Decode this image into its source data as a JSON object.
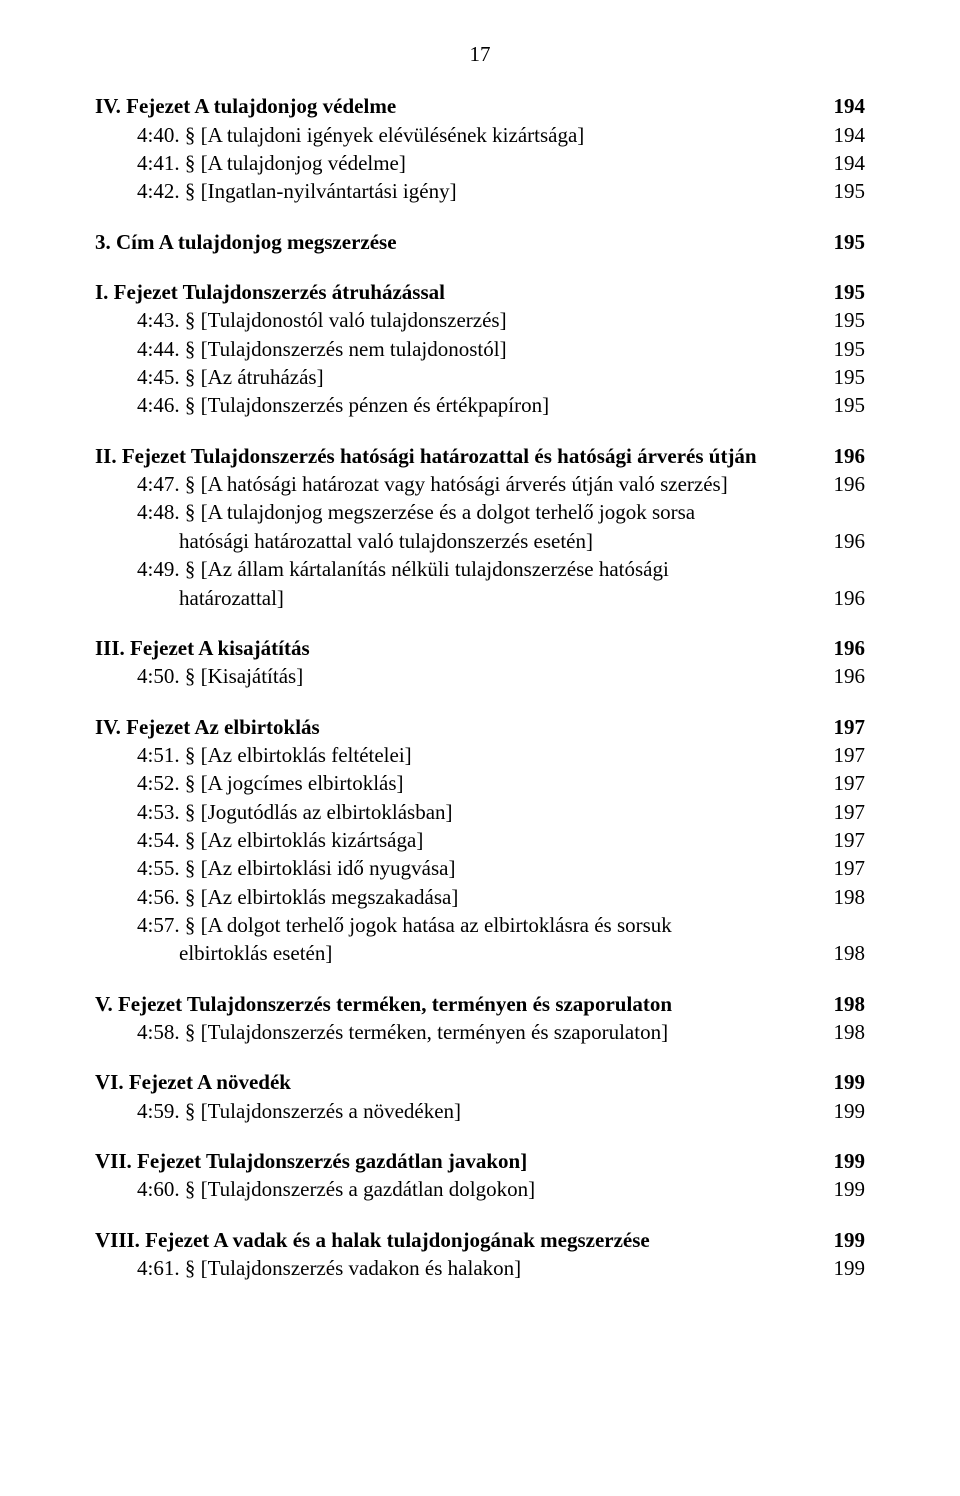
{
  "page_number": "17",
  "entries": [
    {
      "text": "IV. Fejezet A tulajdonjog védelme",
      "page": "194",
      "indent": 0,
      "bold": true,
      "gap": false
    },
    {
      "text": "4:40. § [A tulajdoni igények elévülésének kizártsága]",
      "page": "194",
      "indent": 1,
      "bold": false,
      "gap": false
    },
    {
      "text": "4:41. § [A tulajdonjog védelme]",
      "page": "194",
      "indent": 1,
      "bold": false,
      "gap": false
    },
    {
      "text": "4:42. § [Ingatlan-nyilvántartási igény]",
      "page": "195",
      "indent": 1,
      "bold": false,
      "gap": false
    },
    {
      "text": "3. Cím A tulajdonjog megszerzése",
      "page": "195",
      "indent": 0,
      "bold": true,
      "gap": true
    },
    {
      "text": "I. Fejezet Tulajdonszerzés átruházással",
      "page": "195",
      "indent": 0,
      "bold": true,
      "gap": true
    },
    {
      "text": "4:43. § [Tulajdonostól való tulajdonszerzés]",
      "page": "195",
      "indent": 1,
      "bold": false,
      "gap": false
    },
    {
      "text": "4:44. § [Tulajdonszerzés nem tulajdonostól]",
      "page": "195",
      "indent": 1,
      "bold": false,
      "gap": false
    },
    {
      "text": "4:45. § [Az átruházás]",
      "page": "195",
      "indent": 1,
      "bold": false,
      "gap": false
    },
    {
      "text": "4:46. § [Tulajdonszerzés pénzen és értékpapíron]",
      "page": "195",
      "indent": 1,
      "bold": false,
      "gap": false
    },
    {
      "text": "II. Fejezet Tulajdonszerzés hatósági határozattal és hatósági árverés útján",
      "page": "196",
      "indent": 0,
      "bold": true,
      "gap": true
    },
    {
      "text": "4:47. § [A hatósági határozat vagy hatósági árverés útján való szerzés]",
      "page": "196",
      "indent": 1,
      "bold": false,
      "gap": false
    },
    {
      "text": "4:48. § [A tulajdonjog megszerzése és a dolgot terhelő jogok sorsa",
      "page": "",
      "indent": 1,
      "bold": false,
      "gap": false
    },
    {
      "text": "hatósági határozattal való tulajdonszerzés esetén]",
      "page": "196",
      "indent": 2,
      "bold": false,
      "gap": false
    },
    {
      "text": "4:49. § [Az állam kártalanítás nélküli tulajdonszerzése hatósági",
      "page": "",
      "indent": 1,
      "bold": false,
      "gap": false
    },
    {
      "text": "határozattal]",
      "page": "196",
      "indent": 2,
      "bold": false,
      "gap": false
    },
    {
      "text": "III. Fejezet A kisajátítás",
      "page": "196",
      "indent": 0,
      "bold": true,
      "gap": true
    },
    {
      "text": "4:50. § [Kisajátítás]",
      "page": "196",
      "indent": 1,
      "bold": false,
      "gap": false
    },
    {
      "text": "IV. Fejezet Az elbirtoklás",
      "page": "197",
      "indent": 0,
      "bold": true,
      "gap": true
    },
    {
      "text": "4:51. § [Az elbirtoklás feltételei]",
      "page": "197",
      "indent": 1,
      "bold": false,
      "gap": false
    },
    {
      "text": "4:52. § [A jogcímes elbirtoklás]",
      "page": "197",
      "indent": 1,
      "bold": false,
      "gap": false
    },
    {
      "text": "4:53. § [Jogutódlás az elbirtoklásban]",
      "page": "197",
      "indent": 1,
      "bold": false,
      "gap": false
    },
    {
      "text": "4:54. § [Az elbirtoklás kizártsága]",
      "page": "197",
      "indent": 1,
      "bold": false,
      "gap": false
    },
    {
      "text": "4:55. § [Az elbirtoklási idő nyugvása]",
      "page": "197",
      "indent": 1,
      "bold": false,
      "gap": false
    },
    {
      "text": "4:56. § [Az elbirtoklás megszakadása]",
      "page": "198",
      "indent": 1,
      "bold": false,
      "gap": false
    },
    {
      "text": "4:57. § [A dolgot terhelő jogok hatása az elbirtoklásra és sorsuk",
      "page": "",
      "indent": 1,
      "bold": false,
      "gap": false
    },
    {
      "text": "elbirtoklás esetén]",
      "page": "198",
      "indent": 2,
      "bold": false,
      "gap": false
    },
    {
      "text": "V. Fejezet Tulajdonszerzés terméken, terményen és szaporulaton",
      "page": "198",
      "indent": 0,
      "bold": true,
      "gap": true
    },
    {
      "text": "4:58. § [Tulajdonszerzés terméken, terményen és szaporulaton]",
      "page": "198",
      "indent": 1,
      "bold": false,
      "gap": false
    },
    {
      "text": "VI. Fejezet A növedék",
      "page": "199",
      "indent": 0,
      "bold": true,
      "gap": true
    },
    {
      "text": "4:59. § [Tulajdonszerzés a növedéken]",
      "page": "199",
      "indent": 1,
      "bold": false,
      "gap": false
    },
    {
      "text": "VII. Fejezet Tulajdonszerzés gazdátlan javakon]",
      "page": "199",
      "indent": 0,
      "bold": true,
      "gap": true
    },
    {
      "text": "4:60. § [Tulajdonszerzés a gazdátlan dolgokon]",
      "page": "199",
      "indent": 1,
      "bold": false,
      "gap": false
    },
    {
      "text": "VIII. Fejezet A vadak és a halak tulajdonjogának megszerzése",
      "page": "199",
      "indent": 0,
      "bold": true,
      "gap": true
    },
    {
      "text": "4:61. § [Tulajdonszerzés vadakon és halakon]",
      "page": "199",
      "indent": 1,
      "bold": false,
      "gap": false
    }
  ]
}
